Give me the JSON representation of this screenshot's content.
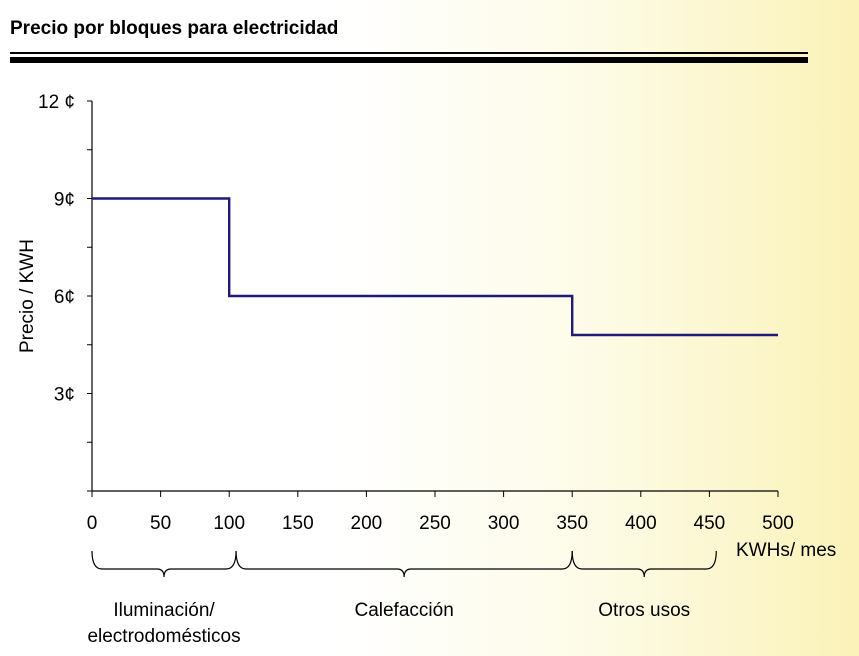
{
  "header": {
    "title": "Precio por bloques para electricidad"
  },
  "chart_data": {
    "type": "line",
    "step": true,
    "title": "Precio por bloques para electricidad",
    "xlabel": "KWHs/ mes",
    "ylabel": "Precio / KWH",
    "xlim": [
      0,
      500
    ],
    "ylim": [
      0,
      12
    ],
    "x_ticks": [
      0,
      50,
      100,
      150,
      200,
      250,
      300,
      350,
      400,
      450,
      500
    ],
    "x_tick_labels": [
      "0",
      "50",
      "100",
      "150",
      "200",
      "250",
      "300",
      "350",
      "400",
      "450",
      "500"
    ],
    "y_ticks": [
      3,
      6,
      9,
      12
    ],
    "y_tick_labels": [
      "3¢",
      "6¢",
      "9¢",
      "12 ¢"
    ],
    "y_minor_step": 1.5,
    "grid": false,
    "series": [
      {
        "x": [
          0,
          100,
          100,
          350,
          350,
          500
        ],
        "y": [
          9,
          9,
          6,
          6,
          4.8,
          4.8
        ],
        "color": "#1f1a78"
      }
    ],
    "blocks": [
      {
        "from": 0,
        "to": 105,
        "label_line1": "Iluminación/",
        "label_line2": "electrodomésticos"
      },
      {
        "from": 105,
        "to": 350,
        "label_line1": "Calefacción",
        "label_line2": ""
      },
      {
        "from": 350,
        "to": 455,
        "label_line1": "Otros usos",
        "label_line2": ""
      }
    ]
  }
}
